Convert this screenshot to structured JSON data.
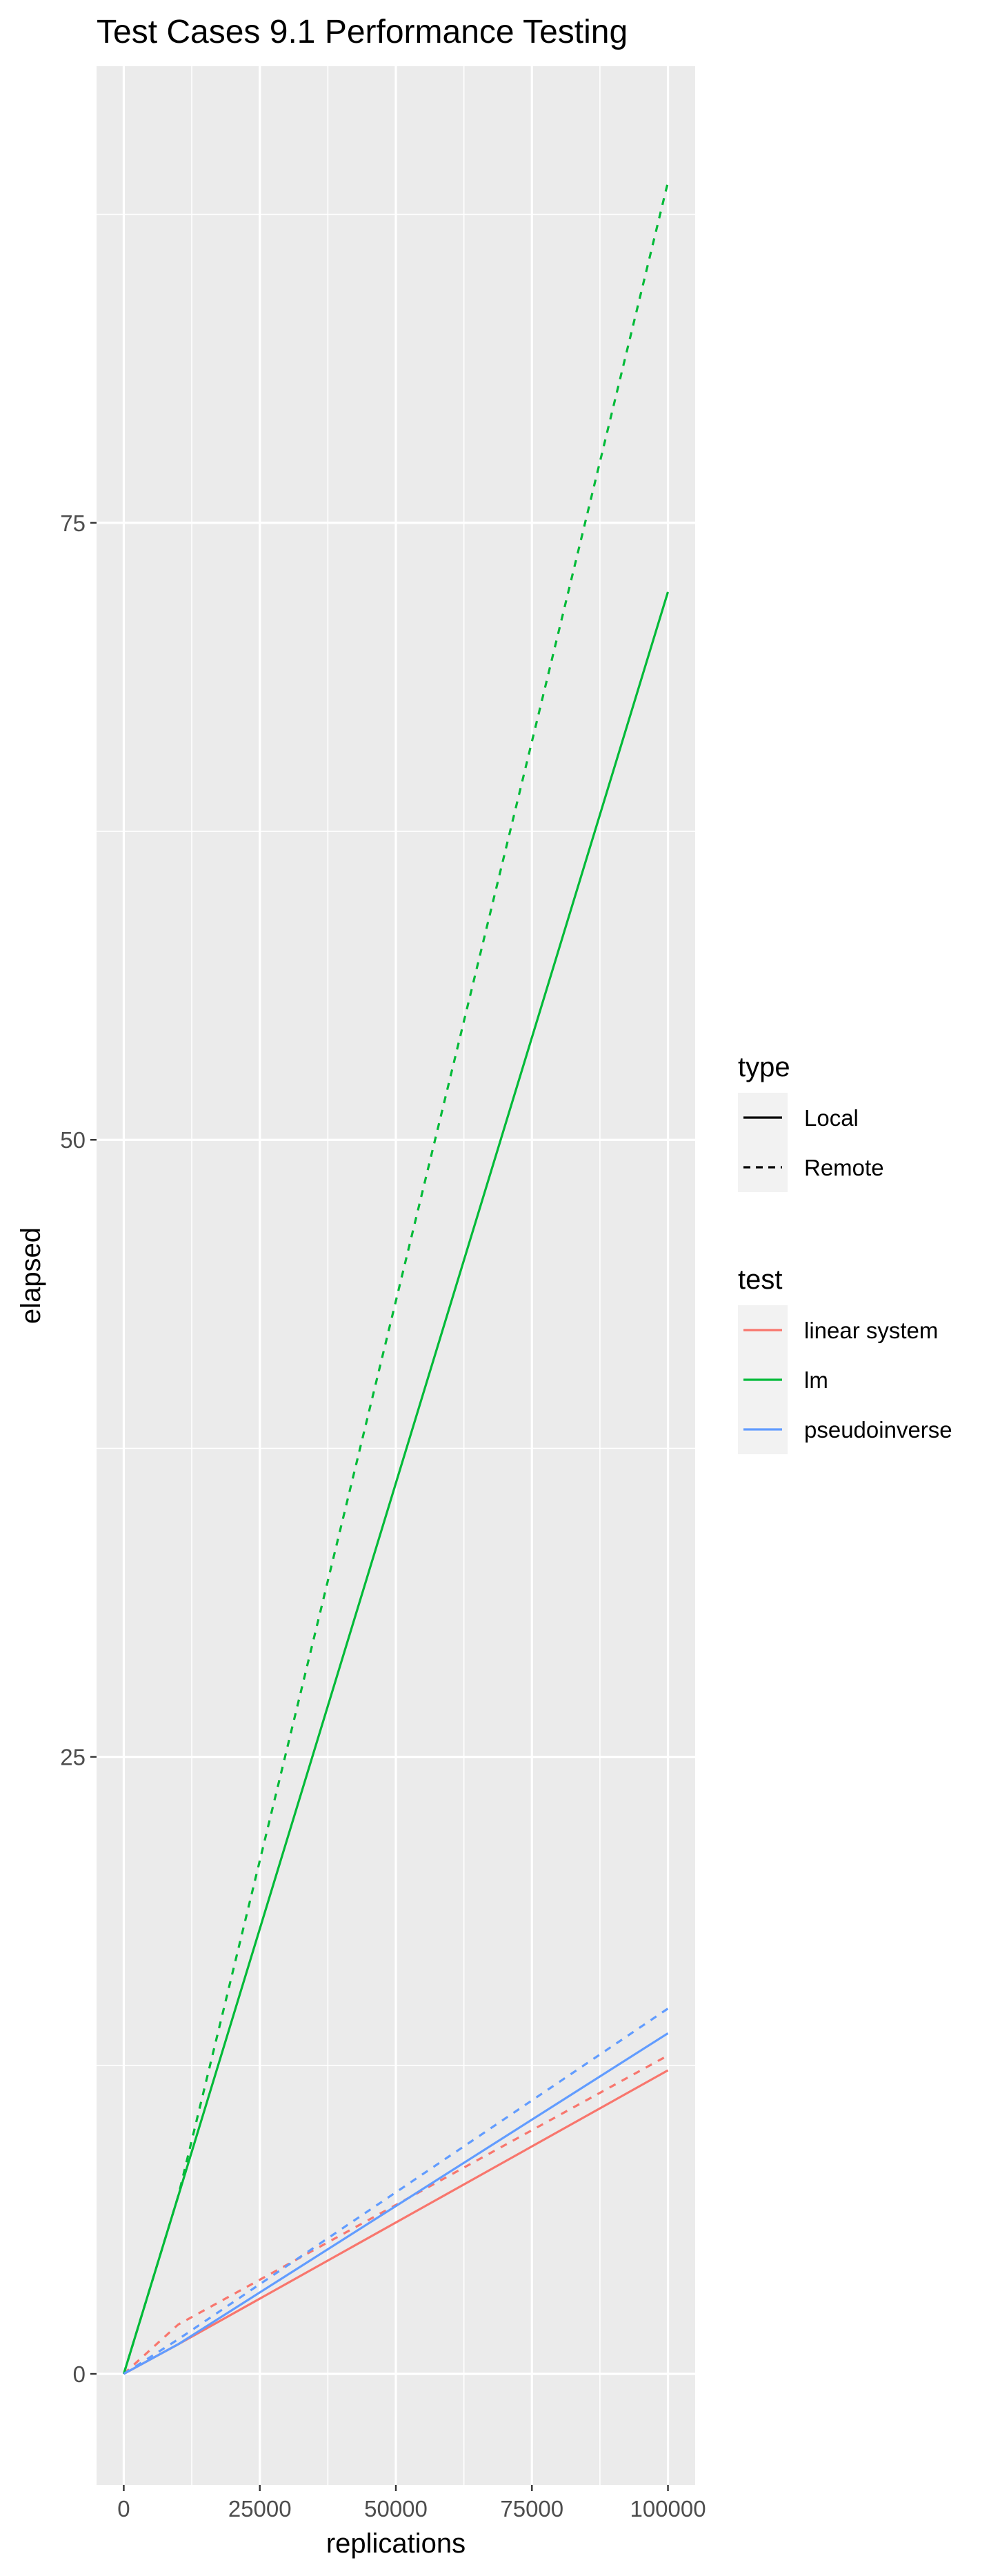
{
  "chart_data": {
    "type": "line",
    "title": "Test Cases 9.1 Performance Testing",
    "xlabel": "replications",
    "ylabel": "elapsed",
    "xlim": [
      -5000,
      105000
    ],
    "ylim": [
      -4.5,
      93.5
    ],
    "x_ticks": [
      0,
      25000,
      50000,
      75000,
      100000
    ],
    "x_tick_labels": [
      "0",
      "25000",
      "50000",
      "75000",
      "100000"
    ],
    "y_ticks": [
      0,
      25,
      50,
      75
    ],
    "y_tick_labels": [
      "0",
      "25",
      "50",
      "75"
    ],
    "grid": true,
    "legend_position": "right",
    "legends": [
      {
        "title": "type",
        "entries": [
          {
            "label": "Local",
            "linetype": "solid"
          },
          {
            "label": "Remote",
            "linetype": "dashed"
          }
        ]
      },
      {
        "title": "test",
        "entries": [
          {
            "label": "linear system",
            "color": "#F8766D"
          },
          {
            "label": "lm",
            "color": "#00BA38"
          },
          {
            "label": "pseudoinverse",
            "color": "#619CFF"
          }
        ]
      }
    ],
    "series": [
      {
        "test": "linear system",
        "type": "Local",
        "color": "#F8766D",
        "linetype": "solid",
        "x": [
          0,
          10000,
          100000
        ],
        "y": [
          0,
          1.2,
          12.3
        ]
      },
      {
        "test": "linear system",
        "type": "Remote",
        "color": "#F8766D",
        "linetype": "dashed",
        "x": [
          0,
          10000,
          100000
        ],
        "y": [
          0,
          2.0,
          12.9
        ]
      },
      {
        "test": "lm",
        "type": "Local",
        "color": "#00BA38",
        "linetype": "solid",
        "x": [
          0,
          10000,
          100000
        ],
        "y": [
          0,
          7.2,
          72.2
        ]
      },
      {
        "test": "lm",
        "type": "Remote",
        "color": "#00BA38",
        "linetype": "dashed",
        "x": [
          0,
          10000,
          100000
        ],
        "y": [
          0,
          7.2,
          88.8
        ]
      },
      {
        "test": "pseudoinverse",
        "type": "Local",
        "color": "#619CFF",
        "linetype": "solid",
        "x": [
          0,
          10000,
          100000
        ],
        "y": [
          0,
          1.2,
          13.8
        ]
      },
      {
        "test": "pseudoinverse",
        "type": "Remote",
        "color": "#619CFF",
        "linetype": "dashed",
        "x": [
          0,
          10000,
          100000
        ],
        "y": [
          0,
          1.4,
          14.8
        ]
      }
    ]
  }
}
